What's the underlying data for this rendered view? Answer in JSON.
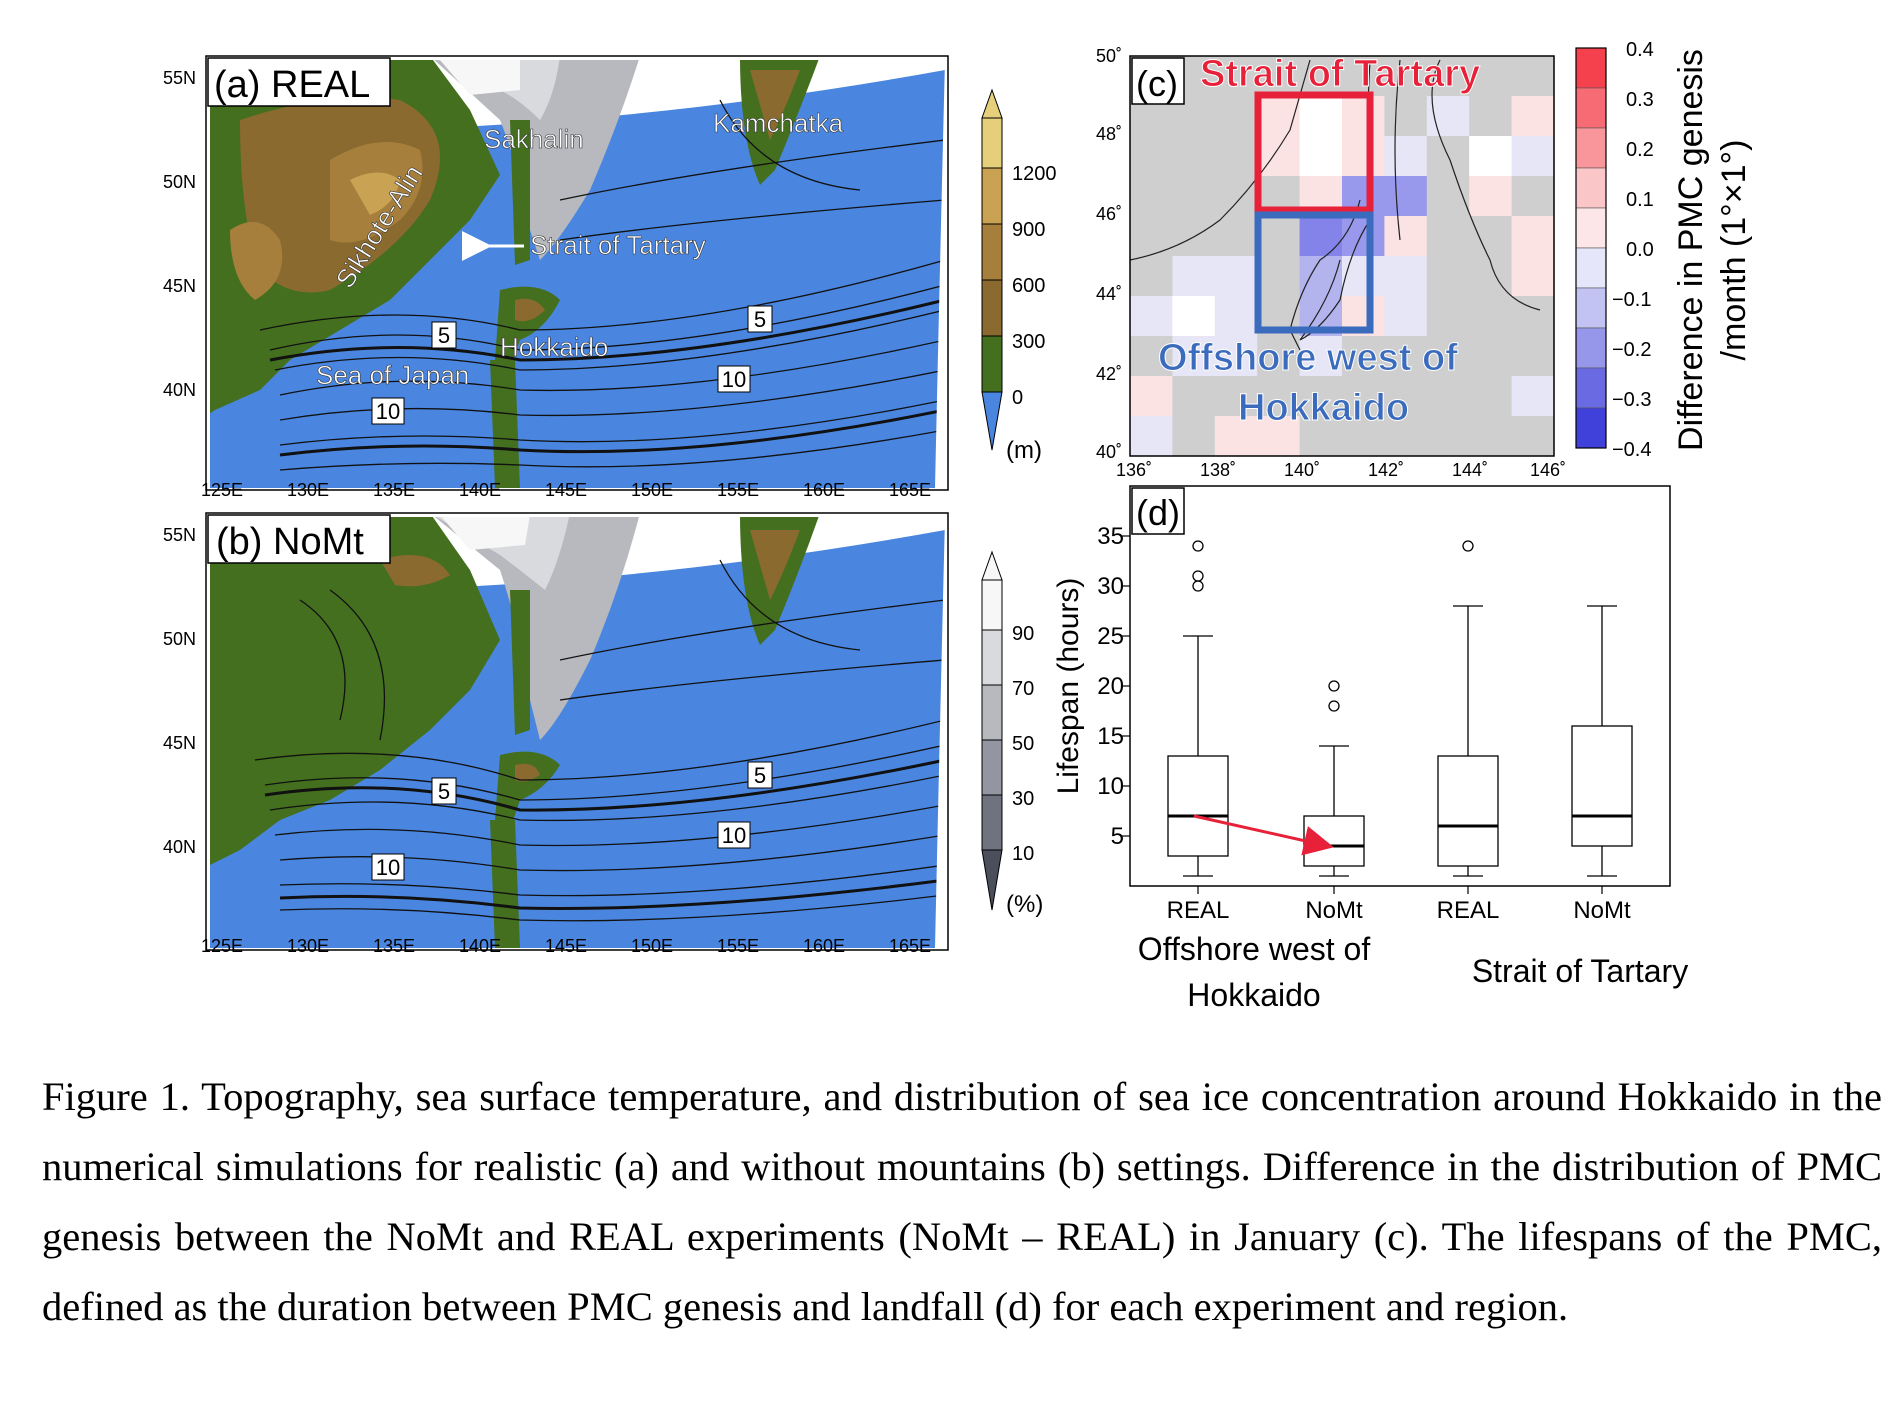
{
  "panel_a": {
    "label": "(a) REAL",
    "places": {
      "sakhalin": "Sakhalin",
      "kamchatka": "Kamchatka",
      "sikhote_alin": "Sikhote-Alin",
      "strait": "Strait of Tartary",
      "hokkaido": "Hokkaido",
      "sea_of_japan": "Sea of Japan"
    },
    "contour_labels": [
      "5",
      "5",
      "10",
      "10"
    ]
  },
  "panel_b": {
    "label": "(b) NoMt",
    "contour_labels": [
      "5",
      "5",
      "10",
      "10"
    ]
  },
  "map_axes": {
    "lon_ticks": [
      "125E",
      "130E",
      "135E",
      "140E",
      "145E",
      "150E",
      "155E",
      "160E",
      "165E"
    ],
    "lat_ticks": [
      "55N",
      "50N",
      "45N",
      "40N"
    ]
  },
  "topo_colorbar": {
    "ticks": [
      "1200",
      "900",
      "600",
      "300",
      "0"
    ],
    "unit": "(m)",
    "colors": [
      "#e6cf7a",
      "#c9a253",
      "#a77f3c",
      "#8a6a2f",
      "#436f1e",
      "#4a86e0"
    ]
  },
  "ice_colorbar": {
    "ticks": [
      "90",
      "70",
      "50",
      "30",
      "10"
    ],
    "unit": "(%)",
    "colors": [
      "#f7f7f7",
      "#d9dadd",
      "#b7b9be",
      "#9396a0",
      "#6f7380",
      "#4b4f5c"
    ]
  },
  "panel_c": {
    "label": "(c)",
    "box_red": "Strait of Tartary",
    "box_blue_line1": "Offshore west of",
    "box_blue_line2": "Hokkaido",
    "lon_ticks": [
      "136˚",
      "138˚",
      "140˚",
      "142˚",
      "144˚",
      "146˚"
    ],
    "lat_ticks": [
      "50˚",
      "48˚",
      "46˚",
      "44˚",
      "42˚",
      "40˚"
    ],
    "colorbar_ticks": [
      "0.4",
      "0.3",
      "0.2",
      "0.1",
      "0.0",
      "−0.1",
      "−0.2",
      "−0.3",
      "−0.4"
    ],
    "colorbar_label_line1": "Difference in PMC genesis",
    "colorbar_label_line2": "/month (1°×1°)",
    "colorbar_colors": [
      "#f5414d",
      "#f76b74",
      "#f9969b",
      "#fbc6c8",
      "#fde6e7",
      "#e6e6fb",
      "#c2c2f3",
      "#9696ea",
      "#6a6ae2",
      "#4040da"
    ],
    "grid_colors": {
      "gray": "#cfcfcf",
      "white": "#ffffff",
      "pink": "#fbe3e4",
      "lightblue": "#e6e6f7",
      "blue1": "#b3b3ee",
      "blue2": "#9898ec",
      "blue3": "#8383ea"
    },
    "box_colors": {
      "red": "#e8213a",
      "blue": "#3b6bbd"
    }
  },
  "chart_data": {
    "type": "box",
    "panel_label": "(d)",
    "ylabel": "Lifespan (hours)",
    "yticks": [
      "35",
      "30",
      "25",
      "20",
      "15",
      "10",
      "5"
    ],
    "categories": [
      "REAL",
      "NoMt",
      "REAL",
      "NoMt"
    ],
    "groups": [
      {
        "line1": "Offshore west of",
        "line2": "Hokkaido"
      },
      {
        "line1": "Strait of Tartary",
        "line2": ""
      }
    ],
    "boxes": [
      {
        "whisker_low": 1,
        "q1": 3,
        "median": 7,
        "q3": 13,
        "whisker_high": 25,
        "outliers": [
          30,
          31,
          34
        ]
      },
      {
        "whisker_low": 1,
        "q1": 2,
        "median": 4,
        "q3": 7,
        "whisker_high": 14,
        "outliers": [
          18,
          20
        ]
      },
      {
        "whisker_low": 1,
        "q1": 2,
        "median": 6,
        "q3": 13,
        "whisker_high": 28,
        "outliers": [
          34
        ]
      },
      {
        "whisker_low": 1,
        "q1": 4,
        "median": 7,
        "q3": 16,
        "whisker_high": 28,
        "outliers": []
      }
    ],
    "ylim": [
      0,
      40
    ],
    "arrow_color": "#e8213a"
  },
  "caption": "Figure 1. Topography, sea surface temperature, and distribution of sea ice concentration around Hokkaido in the numerical simulations for realistic (a) and without mountains (b) settings. Difference in the distribution of PMC genesis between the NoMt and REAL experiments (NoMt – REAL) in January (c). The lifespans of the PMC, defined as the duration between PMC genesis and landfall (d) for each experiment and region."
}
